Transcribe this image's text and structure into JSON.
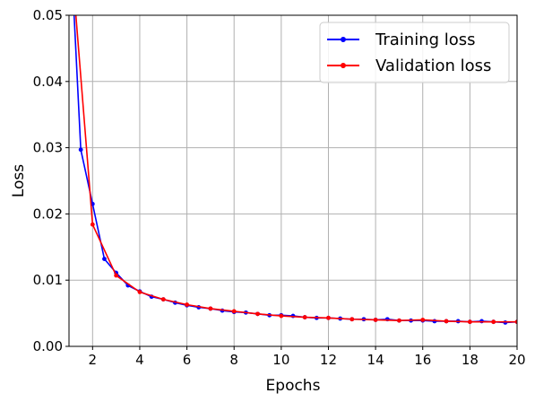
{
  "chart_data": {
    "type": "line",
    "xlabel": "Epochs",
    "ylabel": "Loss",
    "xlim": [
      1,
      20
    ],
    "ylim": [
      0,
      0.05
    ],
    "xticks": [
      "2",
      "4",
      "6",
      "8",
      "10",
      "12",
      "14",
      "16",
      "18",
      "20"
    ],
    "yticks": [
      "0.00",
      "0.01",
      "0.02",
      "0.03",
      "0.04",
      "0.05"
    ],
    "grid": true,
    "legend_position": "top-right",
    "series": [
      {
        "name": "Training loss",
        "color": "#0000ff",
        "x": [
          1.0,
          1.5,
          2.0,
          2.5,
          3.0,
          3.5,
          4.0,
          4.5,
          5.0,
          5.5,
          6.0,
          6.5,
          7.0,
          7.5,
          8.0,
          8.5,
          9.0,
          9.5,
          10.0,
          10.5,
          11.0,
          11.5,
          12.0,
          12.5,
          13.0,
          13.5,
          14.0,
          14.5,
          15.0,
          15.5,
          16.0,
          16.5,
          17.0,
          17.5,
          18.0,
          18.5,
          19.0,
          19.5,
          20.0
        ],
        "y": [
          0.0655,
          0.0297,
          0.0215,
          0.0132,
          0.0111,
          0.0092,
          0.0083,
          0.0075,
          0.0071,
          0.0066,
          0.0062,
          0.0059,
          0.0057,
          0.0054,
          0.0052,
          0.0051,
          0.0049,
          0.0047,
          0.0047,
          0.0046,
          0.0044,
          0.0043,
          0.0043,
          0.0042,
          0.0041,
          0.0041,
          0.004,
          0.0041,
          0.0039,
          0.0039,
          0.0039,
          0.0038,
          0.0038,
          0.0038,
          0.0037,
          0.0038,
          0.0037,
          0.0036,
          0.0037
        ]
      },
      {
        "name": "Validation loss",
        "color": "#ff0000",
        "x": [
          1.0,
          2.0,
          3.0,
          4.0,
          5.0,
          6.0,
          7.0,
          8.0,
          9.0,
          10.0,
          11.0,
          12.0,
          13.0,
          14.0,
          15.0,
          16.0,
          17.0,
          18.0,
          19.0,
          20.0
        ],
        "y": [
          0.063,
          0.0184,
          0.0107,
          0.0082,
          0.0071,
          0.0063,
          0.0057,
          0.0053,
          0.0049,
          0.0046,
          0.0044,
          0.0043,
          0.0041,
          0.004,
          0.0039,
          0.004,
          0.0038,
          0.0037,
          0.0037,
          0.0037
        ]
      }
    ]
  }
}
